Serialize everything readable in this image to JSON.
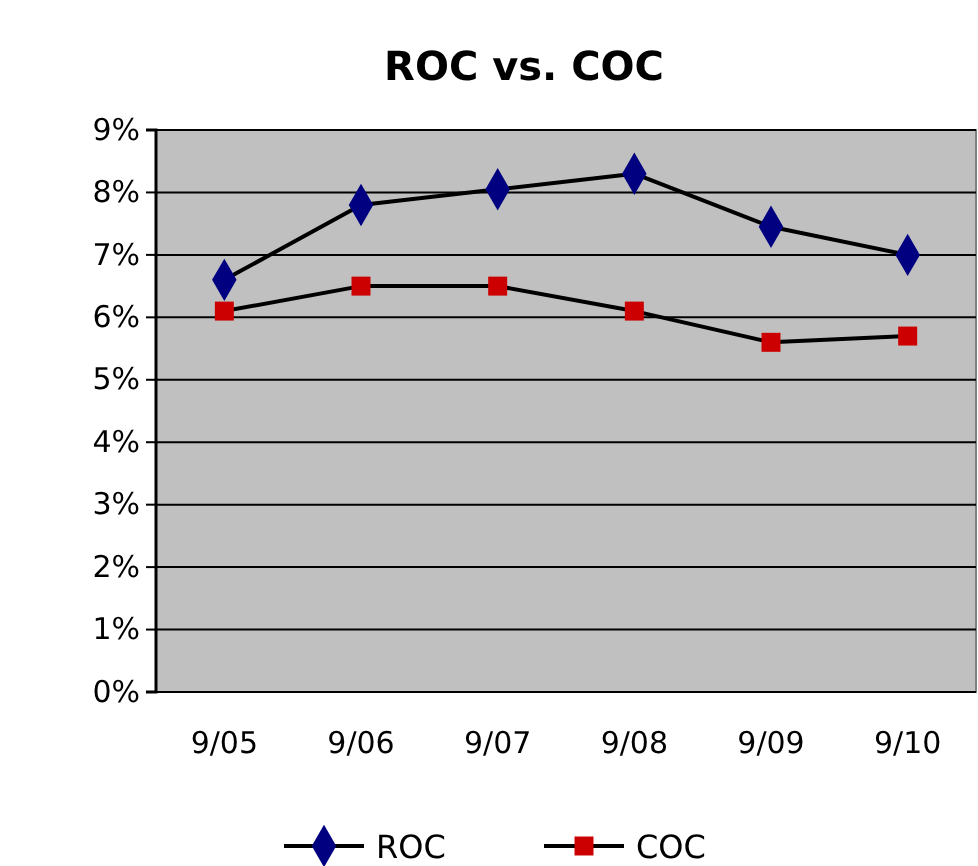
{
  "chart_data": {
    "type": "line",
    "title": "ROC vs. COC",
    "categories": [
      "9/05",
      "9/06",
      "9/07",
      "9/08",
      "9/09",
      "9/10"
    ],
    "series": [
      {
        "name": "ROC",
        "color": "#000080",
        "marker": "diamond",
        "values": [
          6.6,
          7.8,
          8.05,
          8.3,
          7.45,
          7.0
        ]
      },
      {
        "name": "COC",
        "color": "#cc0000",
        "marker": "square",
        "values": [
          6.1,
          6.5,
          6.5,
          6.1,
          5.6,
          5.7
        ]
      }
    ],
    "ylim": [
      0,
      9
    ],
    "yticks": [
      {
        "value": 0,
        "label": "0%"
      },
      {
        "value": 1,
        "label": "1%"
      },
      {
        "value": 2,
        "label": "2%"
      },
      {
        "value": 3,
        "label": "3%"
      },
      {
        "value": 4,
        "label": "4%"
      },
      {
        "value": 5,
        "label": "5%"
      },
      {
        "value": 6,
        "label": "6%"
      },
      {
        "value": 7,
        "label": "7%"
      },
      {
        "value": 8,
        "label": "8%"
      },
      {
        "value": 9,
        "label": "9%"
      }
    ],
    "grid": "y",
    "legend": "bottom",
    "line_style": "solid"
  }
}
